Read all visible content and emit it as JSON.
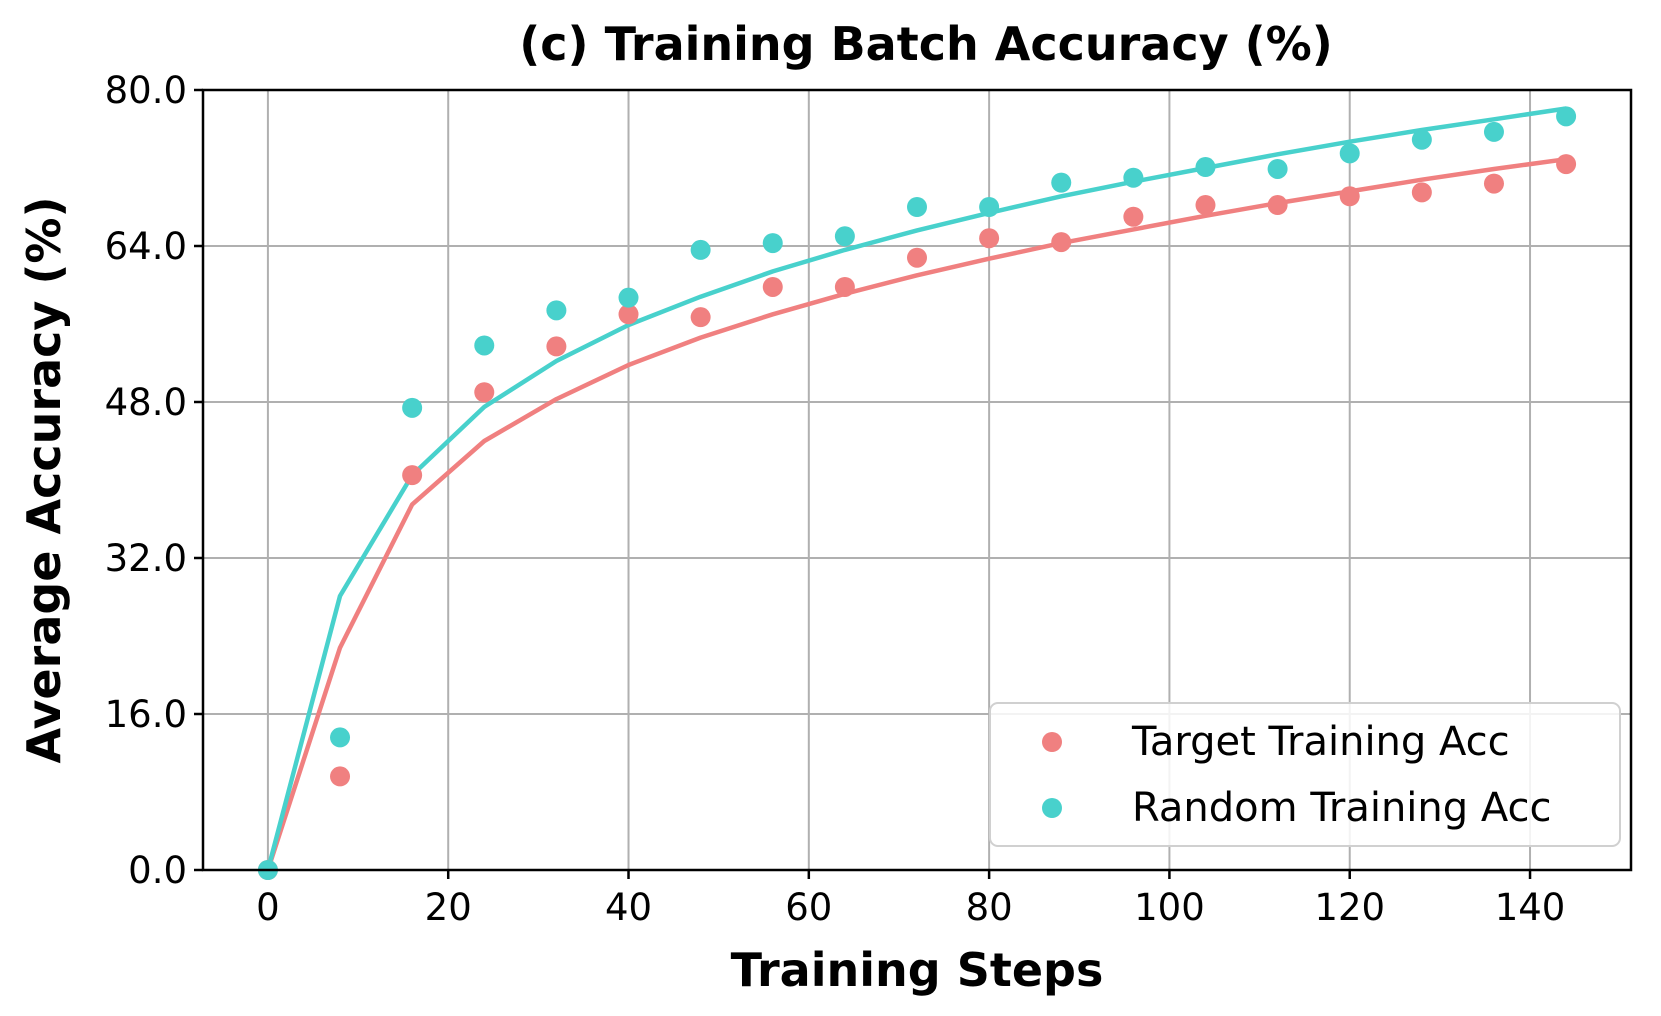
{
  "chart_data": {
    "type": "scatter",
    "title": "(c) Training Batch Accuracy (%)",
    "xlabel": "Training Steps",
    "ylabel": "Average Accuracy (%)",
    "xlim": [
      -7.2,
      151.2
    ],
    "ylim": [
      0,
      80
    ],
    "x_ticks": [
      0,
      20,
      40,
      60,
      80,
      100,
      120,
      140
    ],
    "x_tick_labels": [
      "0",
      "20",
      "40",
      "60",
      "80",
      "100",
      "120",
      "140"
    ],
    "y_ticks": [
      0,
      16,
      32,
      48,
      64,
      80
    ],
    "y_tick_labels": [
      "0.0",
      "16.0",
      "32.0",
      "48.0",
      "64.0",
      "80.0"
    ],
    "grid": true,
    "legend_position": "bottom-right",
    "x": [
      0,
      8,
      16,
      24,
      32,
      40,
      48,
      56,
      64,
      72,
      80,
      88,
      96,
      104,
      112,
      120,
      128,
      136,
      144
    ],
    "series": [
      {
        "name": "Target Training Acc",
        "color": "#f08080",
        "values": [
          0,
          9.6,
          40.5,
          49.0,
          53.7,
          57.0,
          56.7,
          59.8,
          59.8,
          62.8,
          64.8,
          64.4,
          67.0,
          68.2,
          68.2,
          69.1,
          69.5,
          70.4,
          72.4
        ],
        "trend": [
          0,
          22.8,
          37.5,
          44.0,
          48.3,
          51.8,
          54.6,
          57.0,
          59.1,
          61.0,
          62.7,
          64.3,
          65.7,
          67.1,
          68.4,
          69.6,
          70.8,
          71.9,
          72.9
        ]
      },
      {
        "name": "Random Training Acc",
        "color": "#48d1cc",
        "values": [
          0,
          13.6,
          47.4,
          53.8,
          57.4,
          58.7,
          63.6,
          64.3,
          65.0,
          68.0,
          68.0,
          70.5,
          71.0,
          72.1,
          71.9,
          73.5,
          74.9,
          75.7,
          77.3
        ],
        "trend": [
          0,
          28.1,
          40.5,
          47.5,
          52.2,
          55.9,
          58.8,
          61.4,
          63.6,
          65.6,
          67.4,
          69.1,
          70.6,
          72.0,
          73.4,
          74.7,
          75.9,
          77.0,
          78.1
        ]
      }
    ]
  }
}
